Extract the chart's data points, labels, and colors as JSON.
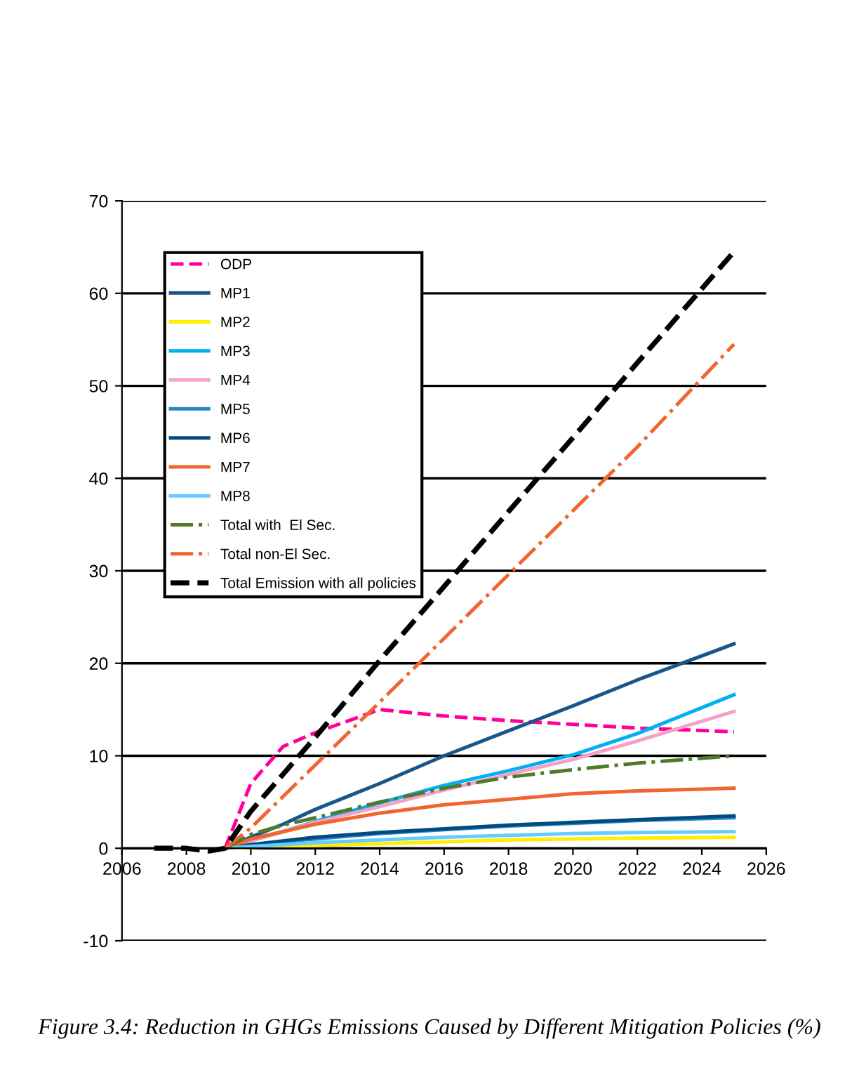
{
  "chart_data": {
    "type": "line",
    "x": [
      2007,
      2008,
      2008.7,
      2009.2,
      2010,
      2011,
      2012,
      2014,
      2016,
      2018,
      2020,
      2022,
      2025
    ],
    "series": [
      {
        "name": "ODP",
        "color": "#ff0099",
        "line_style": "dashed",
        "values": [
          null,
          null,
          null,
          0,
          7,
          11,
          12.5,
          15,
          14.3,
          13.8,
          13.4,
          13,
          12.6
        ]
      },
      {
        "name": "MP1",
        "color": "#17558a",
        "values": [
          null,
          null,
          null,
          0,
          1.2,
          2.6,
          4.2,
          7,
          10,
          12.7,
          15.4,
          18.2,
          22.1
        ]
      },
      {
        "name": "MP2",
        "color": "#ffee00",
        "values": [
          null,
          null,
          null,
          0,
          0.1,
          0.2,
          0.3,
          0.5,
          0.7,
          0.9,
          1,
          1.1,
          1.2
        ]
      },
      {
        "name": "MP3",
        "color": "#00b0f0",
        "values": [
          null,
          null,
          null,
          0,
          0.8,
          1.8,
          2.9,
          4.9,
          6.8,
          8.4,
          10.1,
          12.4,
          16.6
        ]
      },
      {
        "name": "MP4",
        "color": "#f4a0c8",
        "values": [
          null,
          null,
          null,
          0,
          0.8,
          1.8,
          2.8,
          4.5,
          6.3,
          8,
          9.6,
          11.6,
          14.8
        ]
      },
      {
        "name": "MP5",
        "color": "#2e86c1",
        "values": [
          null,
          null,
          null,
          0,
          0.3,
          0.7,
          1,
          1.6,
          2,
          2.4,
          2.7,
          3,
          3.3
        ]
      },
      {
        "name": "MP6",
        "color": "#004c80",
        "values": [
          null,
          null,
          null,
          0,
          0.4,
          0.8,
          1.2,
          1.7,
          2.1,
          2.5,
          2.8,
          3.1,
          3.5
        ]
      },
      {
        "name": "MP7",
        "color": "#f26430",
        "values": [
          null,
          null,
          null,
          0,
          1,
          1.8,
          2.6,
          3.8,
          4.7,
          5.3,
          5.9,
          6.2,
          6.5
        ]
      },
      {
        "name": "MP8",
        "color": "#66ccff",
        "values": [
          null,
          null,
          null,
          0,
          0.2,
          0.4,
          0.6,
          0.9,
          1.2,
          1.4,
          1.6,
          1.7,
          1.8
        ]
      },
      {
        "name": "Total with  El Sec.",
        "color": "#4f7a28",
        "line_style": "dashdot",
        "values": [
          null,
          null,
          null,
          0,
          1.5,
          2.5,
          3.3,
          5,
          6.5,
          7.7,
          8.5,
          9.2,
          10
        ]
      },
      {
        "name": "Total non-El Sec.",
        "color": "#f26430",
        "line_style": "dashdot",
        "values": [
          null,
          null,
          null,
          0,
          2.2,
          5.6,
          9,
          15.8,
          22.7,
          29.6,
          36.5,
          43.4,
          54.5
        ]
      },
      {
        "name": "Total Emission with all policies",
        "color": "#000000",
        "line_style": "dashed",
        "values": [
          0,
          0,
          -0.3,
          0,
          4,
          8,
          12,
          20.3,
          28.3,
          36.4,
          44.4,
          52.5,
          64.5
        ]
      }
    ],
    "xlim": [
      2006,
      2026
    ],
    "xticks": [
      2006,
      2008,
      2010,
      2012,
      2014,
      2016,
      2018,
      2020,
      2022,
      2024,
      2026
    ],
    "ylim": [
      -10,
      70
    ],
    "yticks": [
      -10,
      0,
      10,
      20,
      30,
      40,
      50,
      60,
      70
    ],
    "grid": "y",
    "legend": "top left",
    "marker": "none",
    "annotations": [
      "Figure 3.4: Reduction in GHGs Emissions Caused by Different Mitigation Policies (%)"
    ]
  }
}
